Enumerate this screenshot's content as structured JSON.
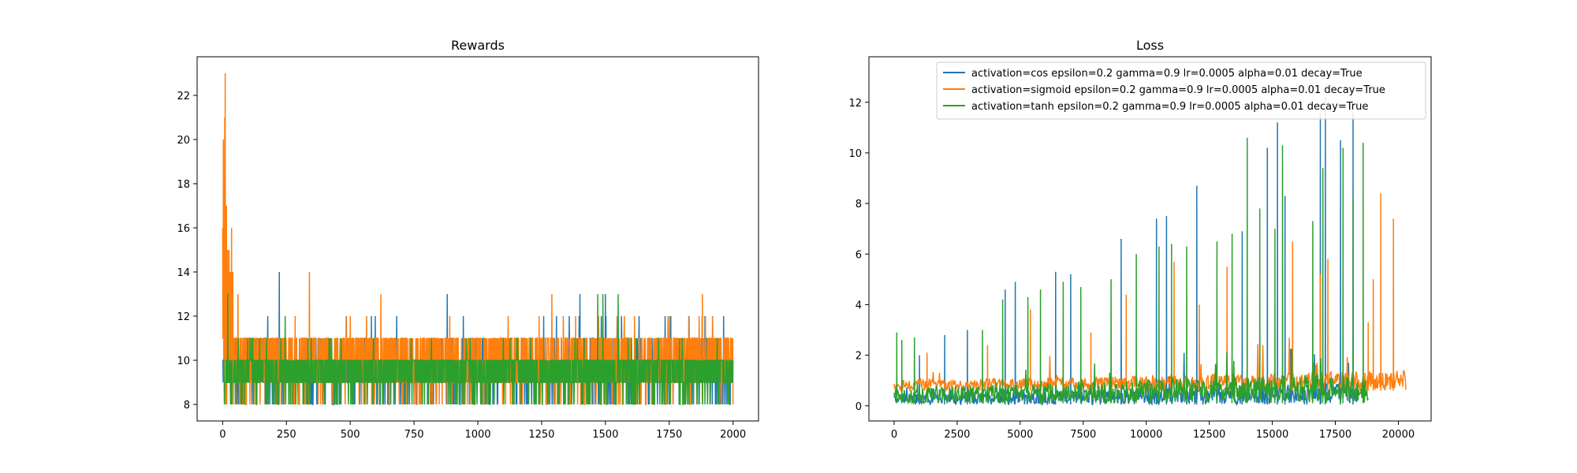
{
  "chart_data": [
    {
      "type": "line",
      "title": "Rewards",
      "xlabel": "",
      "ylabel": "",
      "xlim": [
        -100,
        2100
      ],
      "ylim": [
        7.25,
        23.75
      ],
      "xticks": [
        0,
        250,
        500,
        750,
        1000,
        1250,
        1500,
        1750,
        2000
      ],
      "yticks": [
        8,
        10,
        12,
        14,
        16,
        18,
        20,
        22
      ],
      "grid": false,
      "legend": "none",
      "series": [
        {
          "color": "#1f77b4",
          "episodes": 2000,
          "base": [
            9,
            10
          ],
          "min": 8,
          "max": 12,
          "notes": [
            {
              "x": 222,
              "y": 14
            },
            {
              "x": 880,
              "y": 13
            },
            {
              "x": 1400,
              "y": 13
            },
            {
              "x": 1500,
              "y": 13
            },
            {
              "x": 1920,
              "y": 12
            }
          ]
        },
        {
          "color": "#ff7f0e",
          "episodes": 2000,
          "base": [
            9,
            11
          ],
          "min": 8,
          "max": 12,
          "notes": [
            {
              "x": 0,
              "y": 16
            },
            {
              "x": 3,
              "y": 20
            },
            {
              "x": 8,
              "y": 21
            },
            {
              "x": 10,
              "y": 23
            },
            {
              "x": 15,
              "y": 17
            },
            {
              "x": 20,
              "y": 15
            },
            {
              "x": 25,
              "y": 15
            },
            {
              "x": 30,
              "y": 14
            },
            {
              "x": 35,
              "y": 16
            },
            {
              "x": 40,
              "y": 14
            },
            {
              "x": 60,
              "y": 13
            },
            {
              "x": 340,
              "y": 14
            },
            {
              "x": 620,
              "y": 13
            },
            {
              "x": 1290,
              "y": 13
            },
            {
              "x": 1880,
              "y": 13
            }
          ]
        },
        {
          "color": "#2ca02c",
          "episodes": 2000,
          "base": [
            9,
            10
          ],
          "min": 8,
          "max": 11,
          "notes": [
            {
              "x": 20,
              "y": 13
            },
            {
              "x": 245,
              "y": 12
            },
            {
              "x": 1470,
              "y": 13
            },
            {
              "x": 1490,
              "y": 13
            },
            {
              "x": 1550,
              "y": 13
            }
          ]
        }
      ]
    },
    {
      "type": "line",
      "title": "Loss",
      "xlabel": "",
      "ylabel": "",
      "xlim": [
        -1000,
        21300
      ],
      "ylim": [
        -0.6,
        13.8
      ],
      "xticks": [
        0,
        2500,
        5000,
        7500,
        10000,
        12500,
        15000,
        17500,
        20000
      ],
      "yticks": [
        0,
        2,
        4,
        6,
        8,
        10,
        12
      ],
      "grid": false,
      "legend": "top-right",
      "series": [
        {
          "name": "activation=cos epsilon=0.2 gamma=0.9 lr=0.0005 alpha=0.01 decay=True",
          "color": "#1f77b4",
          "steps": 18400,
          "baseline": [
            0.05,
            0.9
          ],
          "spikes": [
            {
              "x": 1000,
              "y": 2.0
            },
            {
              "x": 2000,
              "y": 2.8
            },
            {
              "x": 2900,
              "y": 3.0
            },
            {
              "x": 4400,
              "y": 4.6
            },
            {
              "x": 4800,
              "y": 4.9
            },
            {
              "x": 6400,
              "y": 5.3
            },
            {
              "x": 7000,
              "y": 5.2
            },
            {
              "x": 9000,
              "y": 6.6
            },
            {
              "x": 10400,
              "y": 7.4
            },
            {
              "x": 10800,
              "y": 7.5
            },
            {
              "x": 12000,
              "y": 8.7
            },
            {
              "x": 13800,
              "y": 6.9
            },
            {
              "x": 14800,
              "y": 10.2
            },
            {
              "x": 15200,
              "y": 11.2
            },
            {
              "x": 15500,
              "y": 8.3
            },
            {
              "x": 16900,
              "y": 11.6
            },
            {
              "x": 17100,
              "y": 12.2
            },
            {
              "x": 17700,
              "y": 10.5
            },
            {
              "x": 18200,
              "y": 11.6
            }
          ]
        },
        {
          "name": "activation=sigmoid epsilon=0.2 gamma=0.9 lr=0.0005 alpha=0.01 decay=True",
          "color": "#ff7f0e",
          "steps": 20300,
          "baseline": [
            0.6,
            1.4
          ],
          "spikes": [
            {
              "x": 800,
              "y": 2.2
            },
            {
              "x": 1300,
              "y": 2.1
            },
            {
              "x": 3700,
              "y": 2.4
            },
            {
              "x": 5400,
              "y": 3.8
            },
            {
              "x": 7800,
              "y": 2.9
            },
            {
              "x": 9200,
              "y": 4.4
            },
            {
              "x": 11100,
              "y": 5.7
            },
            {
              "x": 12100,
              "y": 4.0
            },
            {
              "x": 13200,
              "y": 5.5
            },
            {
              "x": 15800,
              "y": 6.5
            },
            {
              "x": 16900,
              "y": 5.2
            },
            {
              "x": 17200,
              "y": 5.8
            },
            {
              "x": 18800,
              "y": 3.3
            },
            {
              "x": 19000,
              "y": 5.0
            },
            {
              "x": 19300,
              "y": 8.4
            },
            {
              "x": 19800,
              "y": 7.4
            }
          ]
        },
        {
          "name": "activation=tanh epsilon=0.2 gamma=0.9 lr=0.0005 alpha=0.01 decay=True",
          "color": "#2ca02c",
          "steps": 18800,
          "baseline": [
            0.1,
            1.3
          ],
          "spikes": [
            {
              "x": 100,
              "y": 2.9
            },
            {
              "x": 300,
              "y": 2.6
            },
            {
              "x": 800,
              "y": 2.7
            },
            {
              "x": 3500,
              "y": 3.0
            },
            {
              "x": 4300,
              "y": 4.2
            },
            {
              "x": 5300,
              "y": 4.3
            },
            {
              "x": 5800,
              "y": 4.6
            },
            {
              "x": 6700,
              "y": 4.9
            },
            {
              "x": 7400,
              "y": 4.7
            },
            {
              "x": 8600,
              "y": 5.0
            },
            {
              "x": 9600,
              "y": 6.0
            },
            {
              "x": 10500,
              "y": 6.3
            },
            {
              "x": 11000,
              "y": 6.4
            },
            {
              "x": 11600,
              "y": 6.3
            },
            {
              "x": 12800,
              "y": 6.5
            },
            {
              "x": 13400,
              "y": 6.8
            },
            {
              "x": 14000,
              "y": 10.6
            },
            {
              "x": 14500,
              "y": 7.8
            },
            {
              "x": 15100,
              "y": 7.0
            },
            {
              "x": 15400,
              "y": 10.3
            },
            {
              "x": 16600,
              "y": 7.3
            },
            {
              "x": 17000,
              "y": 9.4
            },
            {
              "x": 17800,
              "y": 10.2
            },
            {
              "x": 18200,
              "y": 8.2
            },
            {
              "x": 18600,
              "y": 10.4
            }
          ]
        }
      ]
    }
  ]
}
